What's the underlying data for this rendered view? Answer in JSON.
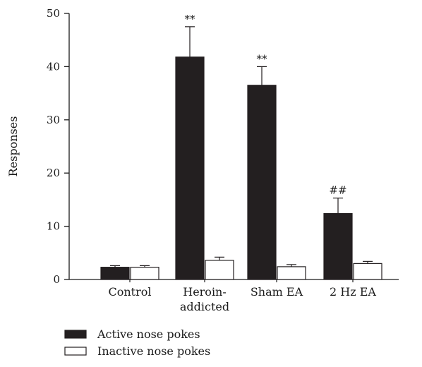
{
  "chart_data": {
    "type": "bar",
    "title": "",
    "xlabel": "",
    "ylabel": "Responses",
    "ylim": [
      0,
      50
    ],
    "yticks": [
      0,
      10,
      20,
      30,
      40,
      50
    ],
    "categories": [
      {
        "lines": [
          "Control"
        ]
      },
      {
        "lines": [
          "Heroin-",
          "addicted"
        ]
      },
      {
        "lines": [
          "Sham EA"
        ]
      },
      {
        "lines": [
          "2 Hz EA"
        ]
      }
    ],
    "series": [
      {
        "name": "Active nose pokes",
        "color": "#231f20",
        "values": [
          2.3,
          41.8,
          36.5,
          12.4
        ],
        "errors": [
          0.3,
          5.7,
          3.5,
          2.9
        ],
        "annotations": [
          "",
          "**",
          "**",
          "##"
        ]
      },
      {
        "name": "Inactive nose pokes",
        "color": "#ffffff",
        "values": [
          2.3,
          3.6,
          2.4,
          3.0
        ],
        "errors": [
          0.3,
          0.6,
          0.4,
          0.4
        ],
        "annotations": [
          "",
          "",
          "",
          ""
        ]
      }
    ],
    "legend_position": "bottom-left",
    "grid": false
  }
}
